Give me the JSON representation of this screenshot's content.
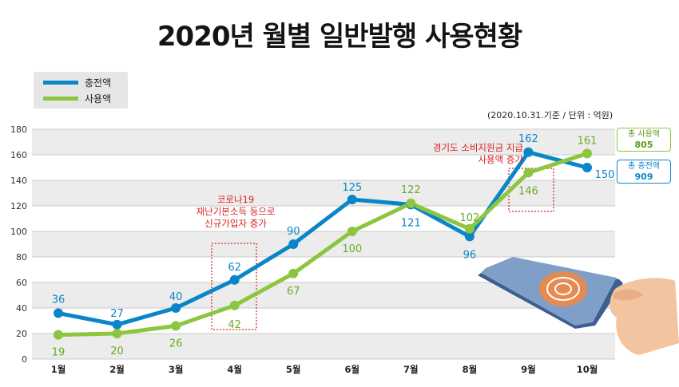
{
  "title": "2020년 월별 일반발행 사용현황",
  "note": "(2020.10.31.기준 / 단위 : 억원)",
  "colors": {
    "charge": "#0a86c8",
    "usage": "#8cc63f",
    "annotation": "#d81e1e",
    "band": "#ececec"
  },
  "legend": [
    {
      "label": "충전액",
      "color": "#0a86c8"
    },
    {
      "label": "사용액",
      "color": "#8cc63f"
    }
  ],
  "totals": {
    "usage": {
      "label": "총 사용액",
      "value": "805"
    },
    "charge": {
      "label": "총 충전액",
      "value": "909"
    }
  },
  "annotations": [
    {
      "lines": [
        "코로나19",
        "재난기본소득 등으로",
        "신규가입자 증가"
      ],
      "category": "4월"
    },
    {
      "lines": [
        "경기도 소비지원금 지급",
        "사용액 증가"
      ],
      "category": "9월"
    }
  ],
  "decoration": {
    "card_icon": "card-in-hand-icon"
  },
  "chart_data": {
    "type": "line",
    "categories": [
      "1월",
      "2월",
      "3월",
      "4월",
      "5월",
      "6월",
      "7월",
      "8월",
      "9월",
      "10월"
    ],
    "series": [
      {
        "name": "충전액",
        "values": [
          36,
          27,
          40,
          62,
          90,
          125,
          121,
          96,
          162,
          150
        ],
        "color": "#0a86c8"
      },
      {
        "name": "사용액",
        "values": [
          19,
          20,
          26,
          42,
          67,
          100,
          122,
          102,
          146,
          161
        ],
        "color": "#8cc63f"
      }
    ],
    "ylim": [
      0,
      180
    ],
    "yticks": [
      0,
      20,
      40,
      60,
      80,
      100,
      120,
      140,
      160,
      180
    ],
    "grid": true,
    "legend_position": "top-left"
  }
}
